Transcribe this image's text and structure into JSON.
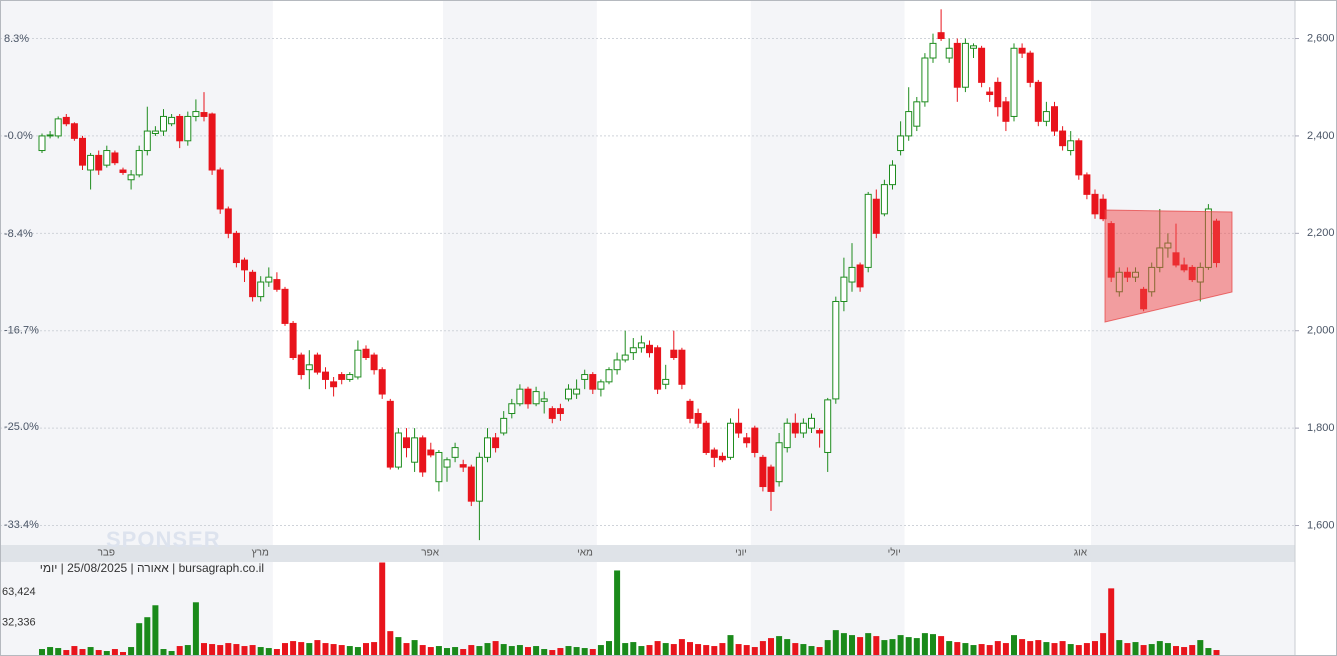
{
  "chart_data": {
    "type": "candlestick",
    "watermark": "SPONSER",
    "source": "bursagraph.co.il | אאורה | 25/08/2025 | יומי",
    "up_color": "#1e8c1e",
    "down_color": "#e8141c",
    "grid": true,
    "ylim": [
      1560,
      2675
    ],
    "yticks": [
      {
        "value": 1600,
        "label": "1,600"
      },
      {
        "value": 1800,
        "label": "1,800"
      },
      {
        "value": 2000,
        "label": "2,000"
      },
      {
        "value": 2200,
        "label": "2,200"
      },
      {
        "value": 2400,
        "label": "2,400"
      },
      {
        "value": 2600,
        "label": "2,600"
      }
    ],
    "y2lim": [
      -35.1,
      11.5
    ],
    "y2ticks": [
      {
        "value": -33.4,
        "label": "-33.4%"
      },
      {
        "value": -25.0,
        "label": "-25.0%"
      },
      {
        "value": -16.7,
        "label": "-16.7%"
      },
      {
        "value": -8.4,
        "label": "-8.4%"
      },
      {
        "value": 0,
        "label": "-0.0%"
      },
      {
        "value": 8.3,
        "label": "8.3%"
      }
    ],
    "categories": [
      null,
      null,
      null,
      null,
      null,
      null,
      null,
      null,
      null,
      null,
      "פבר",
      null,
      null,
      null,
      null,
      null,
      null,
      null,
      null,
      null,
      null,
      null,
      null,
      null,
      null,
      null,
      null,
      null,
      null,
      "מרץ",
      null,
      null,
      null,
      null,
      null,
      null,
      null,
      null,
      null,
      null,
      null,
      null,
      null,
      null,
      null,
      null,
      null,
      null,
      null,
      null,
      "אפר",
      null,
      null,
      null,
      null,
      null,
      null,
      null,
      null,
      null,
      null,
      null,
      null,
      null,
      null,
      null,
      null,
      null,
      null,
      "מאי",
      null,
      null,
      null,
      null,
      null,
      null,
      null,
      null,
      null,
      null,
      null,
      null,
      null,
      null,
      null,
      null,
      null,
      null,
      "יוני",
      null,
      null,
      null,
      null,
      null,
      null,
      null,
      null,
      null,
      null,
      null,
      null,
      null,
      null,
      null,
      null,
      null,
      null,
      "יולי",
      null,
      null,
      null,
      null,
      null,
      null,
      null,
      null,
      null,
      null,
      null,
      null,
      null,
      null,
      null,
      null,
      null,
      null,
      null,
      null,
      null,
      null,
      "אוג",
      null,
      null,
      null,
      null,
      null,
      null,
      null,
      null,
      null,
      null,
      null,
      null,
      null,
      null,
      null
    ],
    "candles": [
      [
        2370,
        2405,
        2365,
        2400
      ],
      [
        2400,
        2410,
        2395,
        2402
      ],
      [
        2400,
        2440,
        2395,
        2435
      ],
      [
        2438,
        2445,
        2420,
        2425
      ],
      [
        2425,
        2428,
        2390,
        2395
      ],
      [
        2395,
        2400,
        2330,
        2340
      ],
      [
        2330,
        2365,
        2290,
        2360
      ],
      [
        2360,
        2370,
        2320,
        2330
      ],
      [
        2340,
        2380,
        2335,
        2370
      ],
      [
        2365,
        2370,
        2340,
        2345
      ],
      [
        2330,
        2335,
        2320,
        2325
      ],
      [
        2310,
        2330,
        2290,
        2320
      ],
      [
        2320,
        2380,
        2315,
        2370
      ],
      [
        2370,
        2460,
        2360,
        2410
      ],
      [
        2405,
        2420,
        2400,
        2410
      ],
      [
        2410,
        2455,
        2400,
        2440
      ],
      [
        2425,
        2445,
        2420,
        2438
      ],
      [
        2440,
        2445,
        2375,
        2390
      ],
      [
        2390,
        2450,
        2380,
        2440
      ],
      [
        2440,
        2475,
        2430,
        2450
      ],
      [
        2448,
        2490,
        2430,
        2440
      ],
      [
        2445,
        2448,
        2320,
        2330
      ],
      [
        2330,
        2335,
        2240,
        2250
      ],
      [
        2250,
        2255,
        2190,
        2200
      ],
      [
        2200,
        2205,
        2130,
        2140
      ],
      [
        2145,
        2150,
        2100,
        2125
      ],
      [
        2120,
        2125,
        2060,
        2070
      ],
      [
        2070,
        2112,
        2060,
        2100
      ],
      [
        2100,
        2130,
        2090,
        2110
      ],
      [
        2105,
        2120,
        2080,
        2085
      ],
      [
        2085,
        2090,
        2010,
        2015
      ],
      [
        2015,
        2020,
        1940,
        1945
      ],
      [
        1950,
        1955,
        1900,
        1910
      ],
      [
        1920,
        1960,
        1880,
        1930
      ],
      [
        1950,
        1955,
        1910,
        1915
      ],
      [
        1915,
        1925,
        1880,
        1900
      ],
      [
        1895,
        1905,
        1865,
        1885
      ],
      [
        1910,
        1915,
        1890,
        1900
      ],
      [
        1900,
        1915,
        1895,
        1910
      ],
      [
        1905,
        1980,
        1900,
        1960
      ],
      [
        1962,
        1970,
        1940,
        1945
      ],
      [
        1950,
        1955,
        1910,
        1920
      ],
      [
        1920,
        1925,
        1860,
        1870
      ],
      [
        1855,
        1860,
        1715,
        1720
      ],
      [
        1720,
        1800,
        1715,
        1790
      ],
      [
        1780,
        1800,
        1740,
        1760
      ],
      [
        1730,
        1800,
        1710,
        1780
      ],
      [
        1780,
        1785,
        1700,
        1710
      ],
      [
        1755,
        1770,
        1740,
        1745
      ],
      [
        1690,
        1755,
        1670,
        1750
      ],
      [
        1720,
        1740,
        1690,
        1735
      ],
      [
        1740,
        1770,
        1730,
        1760
      ],
      [
        1725,
        1735,
        1710,
        1720
      ],
      [
        1720,
        1725,
        1640,
        1650
      ],
      [
        1650,
        1750,
        1570,
        1740
      ],
      [
        1740,
        1800,
        1730,
        1780
      ],
      [
        1780,
        1790,
        1750,
        1760
      ],
      [
        1790,
        1835,
        1785,
        1820
      ],
      [
        1830,
        1860,
        1820,
        1850
      ],
      [
        1850,
        1890,
        1845,
        1880
      ],
      [
        1880,
        1885,
        1840,
        1850
      ],
      [
        1850,
        1885,
        1845,
        1875
      ],
      [
        1855,
        1875,
        1830,
        1860
      ],
      [
        1840,
        1845,
        1810,
        1820
      ],
      [
        1840,
        1850,
        1815,
        1830
      ],
      [
        1860,
        1890,
        1855,
        1880
      ],
      [
        1870,
        1900,
        1860,
        1880
      ],
      [
        1900,
        1920,
        1880,
        1910
      ],
      [
        1910,
        1915,
        1870,
        1880
      ],
      [
        1880,
        1900,
        1865,
        1895
      ],
      [
        1895,
        1925,
        1890,
        1920
      ],
      [
        1920,
        1955,
        1910,
        1940
      ],
      [
        1940,
        2000,
        1935,
        1950
      ],
      [
        1955,
        1985,
        1940,
        1965
      ],
      [
        1965,
        1990,
        1955,
        1975
      ],
      [
        1970,
        1980,
        1945,
        1955
      ],
      [
        1965,
        1970,
        1870,
        1880
      ],
      [
        1890,
        1930,
        1880,
        1900
      ],
      [
        1960,
        2000,
        1940,
        1945
      ],
      [
        1960,
        1965,
        1880,
        1890
      ],
      [
        1855,
        1860,
        1810,
        1820
      ],
      [
        1830,
        1840,
        1800,
        1810
      ],
      [
        1810,
        1815,
        1745,
        1750
      ],
      [
        1755,
        1760,
        1720,
        1740
      ],
      [
        1742,
        1750,
        1730,
        1735
      ],
      [
        1740,
        1820,
        1735,
        1810
      ],
      [
        1810,
        1840,
        1780,
        1790
      ],
      [
        1780,
        1790,
        1760,
        1770
      ],
      [
        1800,
        1805,
        1740,
        1750
      ],
      [
        1740,
        1745,
        1670,
        1680
      ],
      [
        1720,
        1725,
        1630,
        1670
      ],
      [
        1690,
        1790,
        1680,
        1770
      ],
      [
        1760,
        1820,
        1750,
        1810
      ],
      [
        1810,
        1830,
        1780,
        1790
      ],
      [
        1790,
        1820,
        1780,
        1810
      ],
      [
        1800,
        1830,
        1790,
        1820
      ],
      [
        1795,
        1800,
        1760,
        1790
      ],
      [
        1750,
        1862,
        1710,
        1858
      ],
      [
        1860,
        2070,
        1850,
        2060
      ],
      [
        2060,
        2150,
        2040,
        2110
      ],
      [
        2100,
        2180,
        2080,
        2130
      ],
      [
        2135,
        2140,
        2080,
        2090
      ],
      [
        2130,
        2285,
        2120,
        2280
      ],
      [
        2270,
        2290,
        2190,
        2200
      ],
      [
        2240,
        2310,
        2235,
        2300
      ],
      [
        2300,
        2350,
        2290,
        2340
      ],
      [
        2370,
        2430,
        2360,
        2400
      ],
      [
        2400,
        2500,
        2390,
        2450
      ],
      [
        2420,
        2480,
        2410,
        2470
      ],
      [
        2470,
        2570,
        2460,
        2560
      ],
      [
        2560,
        2610,
        2550,
        2590
      ],
      [
        2612,
        2660,
        2595,
        2600
      ],
      [
        2560,
        2600,
        2550,
        2580
      ],
      [
        2590,
        2600,
        2470,
        2500
      ],
      [
        2500,
        2600,
        2490,
        2590
      ],
      [
        2580,
        2590,
        2560,
        2585
      ],
      [
        2580,
        2585,
        2500,
        2510
      ],
      [
        2490,
        2500,
        2470,
        2485
      ],
      [
        2510,
        2520,
        2440,
        2460
      ],
      [
        2470,
        2480,
        2410,
        2430
      ],
      [
        2440,
        2590,
        2430,
        2580
      ],
      [
        2580,
        2590,
        2560,
        2570
      ],
      [
        2570,
        2575,
        2500,
        2510
      ],
      [
        2510,
        2515,
        2420,
        2430
      ],
      [
        2430,
        2470,
        2420,
        2450
      ],
      [
        2460,
        2470,
        2400,
        2410
      ],
      [
        2410,
        2420,
        2370,
        2380
      ],
      [
        2370,
        2410,
        2360,
        2390
      ],
      [
        2390,
        2395,
        2310,
        2320
      ],
      [
        2320,
        2325,
        2270,
        2280
      ],
      [
        2280,
        2290,
        2230,
        2240
      ],
      [
        2270,
        2280,
        2225,
        2230
      ],
      [
        2220,
        2225,
        2100,
        2110
      ],
      [
        2080,
        2130,
        2070,
        2120
      ],
      [
        2120,
        2130,
        2100,
        2110
      ],
      [
        2110,
        2130,
        2100,
        2120
      ],
      [
        2085,
        2090,
        2040,
        2045
      ],
      [
        2080,
        2140,
        2070,
        2130
      ],
      [
        2130,
        2250,
        2120,
        2170
      ],
      [
        2170,
        2200,
        2150,
        2180
      ],
      [
        2160,
        2220,
        2130,
        2135
      ],
      [
        2135,
        2150,
        2120,
        2125
      ],
      [
        2130,
        2135,
        2100,
        2105
      ],
      [
        2100,
        2140,
        2060,
        2130
      ],
      [
        2130,
        2260,
        2125,
        2250
      ],
      [
        2225,
        2230,
        2130,
        2140
      ]
    ],
    "volume": {
      "vlim": [
        0,
        93500
      ],
      "vticks": [
        {
          "value": 32336,
          "label": "32,336"
        },
        {
          "value": 63424,
          "label": "63,424"
        }
      ],
      "values": [
        6000,
        8000,
        7000,
        5000,
        9000,
        6000,
        8000,
        5000,
        4000,
        6000,
        3000,
        8000,
        32000,
        38000,
        50000,
        6000,
        4000,
        9000,
        10000,
        53000,
        12000,
        11000,
        10000,
        12000,
        11000,
        9000,
        10000,
        8000,
        7000,
        6000,
        12000,
        14000,
        13000,
        12000,
        15000,
        12000,
        11000,
        10000,
        9000,
        8000,
        12000,
        13000,
        93000,
        24000,
        18000,
        12000,
        15000,
        10000,
        8000,
        9000,
        7000,
        8000,
        6000,
        10000,
        9000,
        12000,
        14000,
        11000,
        9000,
        10000,
        8000,
        9000,
        6000,
        5000,
        7000,
        9000,
        8000,
        7000,
        6000,
        10000,
        14000,
        85000,
        12000,
        13000,
        9000,
        10000,
        14000,
        12000,
        11000,
        16000,
        13000,
        11000,
        10000,
        9000,
        12000,
        20000,
        11000,
        10000,
        8000,
        14000,
        17000,
        19000,
        16000,
        12000,
        11000,
        9000,
        8000,
        15000,
        25000,
        22000,
        20000,
        18000,
        22000,
        19000,
        15000,
        16000,
        20000,
        18000,
        17000,
        22000,
        21000,
        19000,
        14000,
        13000,
        12000,
        10000,
        11000,
        10000,
        14000,
        12000,
        20000,
        16000,
        14000,
        15000,
        13000,
        12000,
        14000,
        11000,
        10000,
        12000,
        14000,
        22000,
        67000,
        15000,
        12000,
        13000,
        10000,
        11000,
        14000,
        12000,
        9000,
        8000,
        10000,
        15000,
        7000,
        5000
      ]
    }
  }
}
